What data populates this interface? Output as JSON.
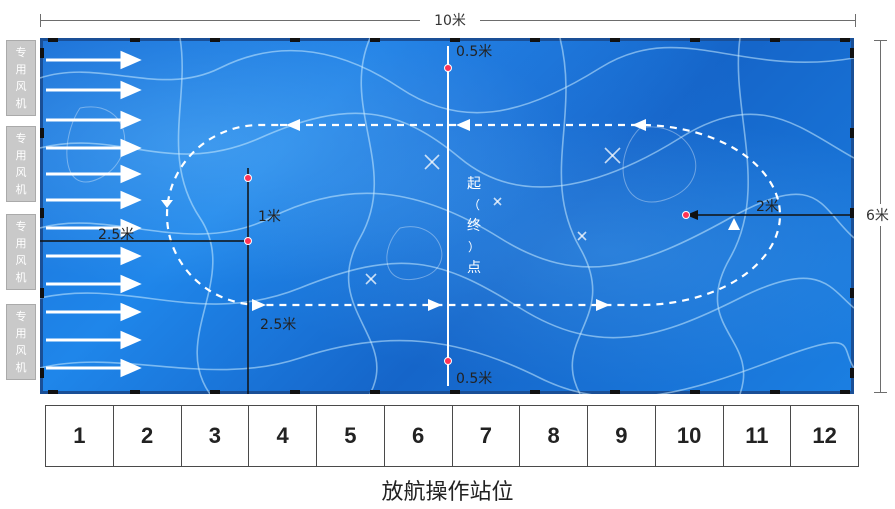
{
  "dimensions": {
    "width_label": "10米",
    "height_label": "6米"
  },
  "fans": [
    {
      "label": "专用风机"
    },
    {
      "label": "专用风机"
    },
    {
      "label": "专用风机"
    },
    {
      "label": "专用风机"
    }
  ],
  "annotations": {
    "top_margin": "0.5米",
    "bottom_margin": "0.5米",
    "left_distance": "2.5米",
    "vertical_gap": "1米",
    "lower_left": "2.5米",
    "right_distance": "2米",
    "start_end_point": [
      "起",
      "（",
      "终",
      "）",
      "点"
    ]
  },
  "stations": [
    "1",
    "2",
    "3",
    "4",
    "5",
    "6",
    "7",
    "8",
    "9",
    "10",
    "11",
    "12"
  ],
  "caption": "放航操作站位"
}
